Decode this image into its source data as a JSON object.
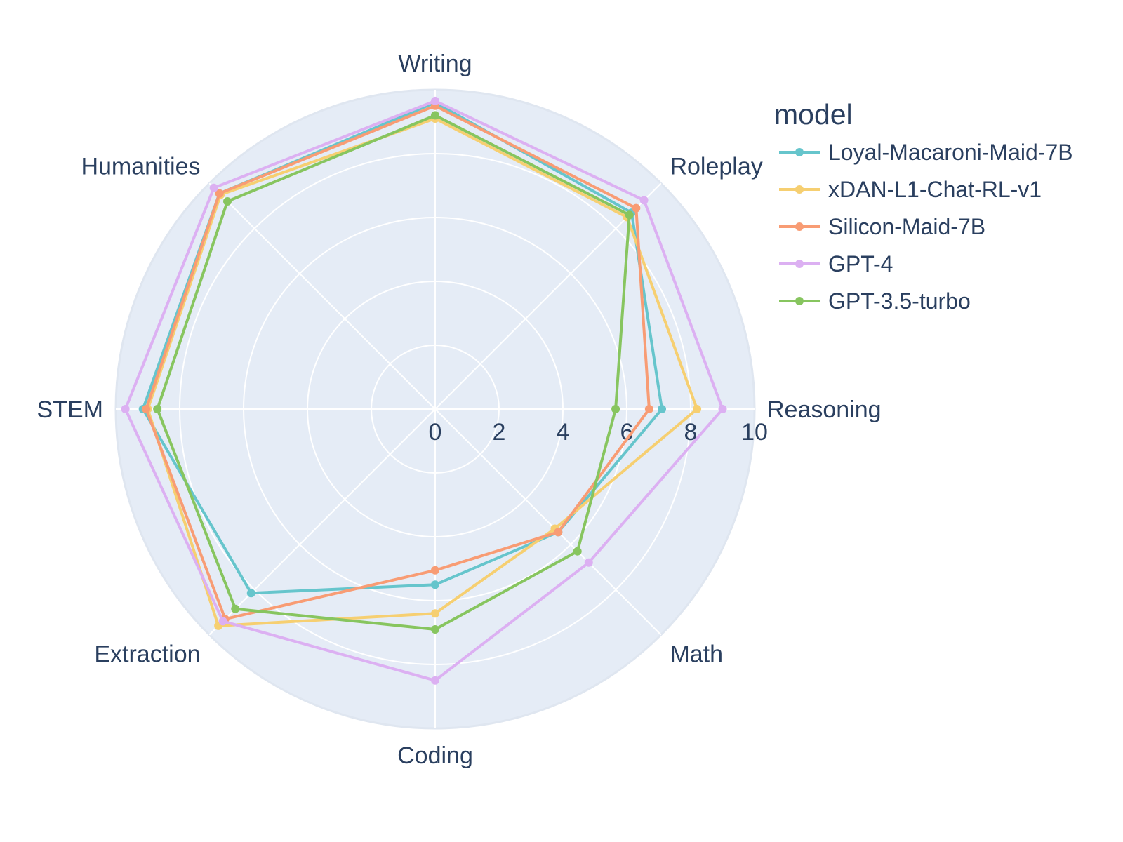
{
  "chart_data": {
    "type": "radar",
    "axes": [
      "Writing",
      "Roleplay",
      "Reasoning",
      "Math",
      "Coding",
      "Extraction",
      "STEM",
      "Humanities"
    ],
    "radial_ticks": [
      "0",
      "2",
      "4",
      "6",
      "8",
      "10"
    ],
    "rlim": [
      0,
      10
    ],
    "legend_title": "model",
    "legend_position": "top-right",
    "grid": true,
    "background_color": "#e5ecf6",
    "grid_color": "#ffffff",
    "series": [
      {
        "name": "Loyal-Macaroni-Maid-7B",
        "color": "#66c5cc",
        "values": [
          9.6,
          8.7,
          7.1,
          5.45,
          5.5,
          8.15,
          9.15,
          9.55
        ]
      },
      {
        "name": "xDAN-L1-Chat-RL-v1",
        "color": "#f6cf71",
        "values": [
          9.1,
          8.5,
          8.2,
          5.3,
          6.4,
          9.6,
          9.0,
          9.5
        ]
      },
      {
        "name": "Silicon-Maid-7B",
        "color": "#f89c74",
        "values": [
          9.5,
          8.9,
          6.7,
          5.45,
          5.05,
          9.3,
          9.05,
          9.55
        ]
      },
      {
        "name": "GPT-4",
        "color": "#dcb0f2",
        "values": [
          9.65,
          9.25,
          9.0,
          6.8,
          8.5,
          9.4,
          9.7,
          9.8
        ]
      },
      {
        "name": "GPT-3.5-turbo",
        "color": "#87c55f",
        "values": [
          9.2,
          8.6,
          5.65,
          6.3,
          6.9,
          8.85,
          8.7,
          9.2
        ]
      }
    ]
  }
}
